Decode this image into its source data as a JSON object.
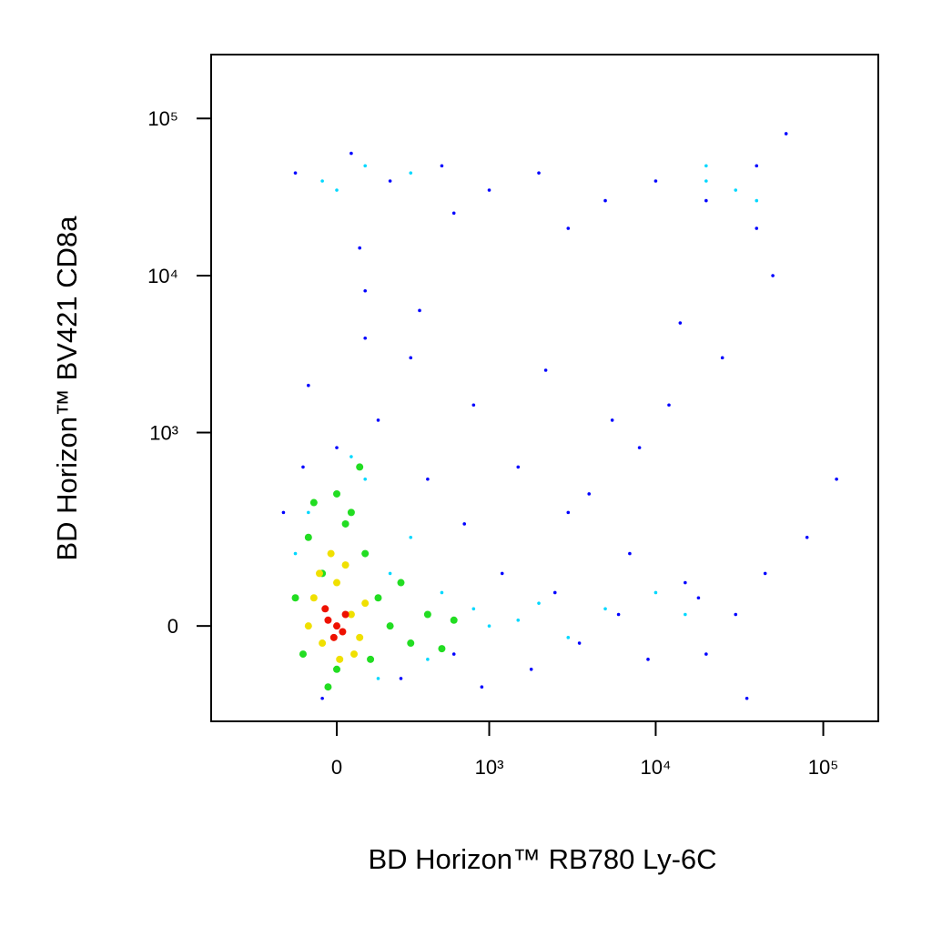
{
  "chart_data": {
    "type": "scatter",
    "x_label": "BD Horizon™ RB780  Ly-6C",
    "y_label": "BD Horizon™ BV421  CD8a",
    "xscale": "biexponential",
    "yscale": "biexponential",
    "xlim": [
      -680,
      213000
    ],
    "ylim": [
      -224,
      255000
    ],
    "xticks": [
      0,
      {
        "value": 1000,
        "label": "10³"
      },
      {
        "value": 10000,
        "label": "10⁴"
      },
      {
        "value": 100000,
        "label": "10⁵"
      }
    ],
    "yticks": [
      0,
      {
        "value": 1000,
        "label": "10³"
      },
      {
        "value": 10000,
        "label": "10⁴"
      },
      {
        "value": 100000,
        "label": "10⁵"
      }
    ],
    "series": [
      {
        "color": "#0000ff",
        "x": [
          -150,
          50,
          200,
          500,
          1000,
          2000,
          5000,
          10000,
          20000,
          40000,
          60000,
          100,
          300,
          800,
          1500,
          3000,
          7000,
          15000,
          30000,
          -100,
          0,
          150,
          400,
          700,
          1200,
          2500,
          4000,
          8000,
          12000,
          25000,
          50000,
          80000,
          120000,
          -50,
          250,
          600,
          900,
          1800,
          3500,
          6000,
          9000,
          18000,
          35000,
          45000,
          -200,
          80,
          350,
          2200,
          5500,
          14000,
          20000,
          40000,
          3000,
          600,
          100,
          -120
        ],
        "y": [
          45000,
          60000,
          40000,
          50000,
          35000,
          45000,
          30000,
          40000,
          30000,
          50000,
          80000,
          8000,
          3000,
          1500,
          600,
          300,
          150,
          80,
          20,
          2000,
          800,
          1200,
          500,
          250,
          100,
          60,
          400,
          800,
          1500,
          3000,
          10000,
          200,
          500,
          -150,
          -100,
          -50,
          -120,
          -80,
          -30,
          20,
          -60,
          50,
          -150,
          100,
          300,
          15000,
          6000,
          2500,
          1200,
          5000,
          -50,
          20000,
          20000,
          25000,
          4000,
          600
        ]
      },
      {
        "color": "#00d8ff",
        "x": [
          -50,
          100,
          30000,
          20000,
          40000,
          0,
          300,
          100,
          300,
          500,
          800,
          1500,
          3000,
          -100,
          50,
          200,
          1000,
          2000,
          5000,
          10000,
          15000,
          -150,
          400,
          150,
          20000
        ],
        "y": [
          40000,
          50000,
          35000,
          40000,
          30000,
          35000,
          45000,
          500,
          200,
          60,
          30,
          10,
          -20,
          300,
          700,
          100,
          0,
          40,
          30,
          60,
          20,
          150,
          -60,
          -100,
          50000
        ]
      },
      {
        "color": "#22dd22",
        "x": [
          -100,
          0,
          50,
          100,
          150,
          200,
          300,
          -150,
          -50,
          0,
          250,
          400,
          -120,
          80,
          30,
          500,
          -80,
          120,
          600,
          -30
        ],
        "y": [
          200,
          400,
          300,
          150,
          50,
          0,
          -30,
          50,
          100,
          -80,
          80,
          20,
          -50,
          600,
          250,
          -40,
          350,
          -60,
          10,
          -120
        ]
      },
      {
        "color": "#f0e000",
        "x": [
          -80,
          0,
          50,
          -50,
          30,
          80,
          -100,
          100,
          -20,
          60,
          -60,
          10
        ],
        "y": [
          50,
          80,
          20,
          -30,
          120,
          -20,
          0,
          40,
          150,
          -50,
          100,
          -60
        ]
      },
      {
        "color": "#ee1100",
        "x": [
          -30,
          0,
          30,
          -10,
          20,
          -40
        ],
        "y": [
          10,
          0,
          20,
          -20,
          -10,
          30
        ]
      }
    ]
  }
}
